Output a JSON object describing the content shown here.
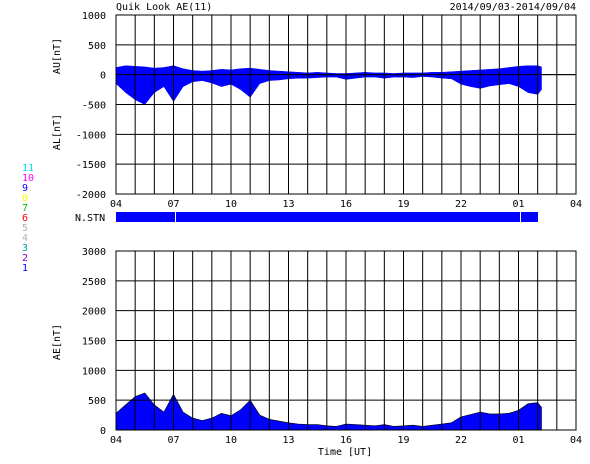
{
  "header": {
    "title": "Quik Look AE(11)",
    "date_range": "2014/09/03-2014/09/04"
  },
  "stations_legend": [
    {
      "label": "11",
      "color": "#00d8e8"
    },
    {
      "label": "10",
      "color": "#ff00ff"
    },
    {
      "label": "9",
      "color": "#0000ff"
    },
    {
      "label": "8",
      "color": "#ffff00"
    },
    {
      "label": "7",
      "color": "#00c000"
    },
    {
      "label": "6",
      "color": "#ff0000"
    },
    {
      "label": "5",
      "color": "#b0b0b0"
    },
    {
      "label": "4",
      "color": "#b0b0b0"
    },
    {
      "label": "3",
      "color": "#00a0a0"
    },
    {
      "label": "2",
      "color": "#8000c0"
    },
    {
      "label": "1",
      "color": "#0000ff"
    }
  ],
  "nstn_label": "N.STN",
  "x_tick_labels": [
    "04",
    "07",
    "10",
    "13",
    "16",
    "19",
    "22",
    "01",
    "04"
  ],
  "x_axis_label": "Time [UT]",
  "colors": {
    "fill": "#0000ff",
    "grid": "#000000"
  },
  "chart_data": [
    {
      "type": "area",
      "panel": "AU/AL",
      "ylabel_top": "AU[nT]",
      "ylabel_bottom": "AL[nT]",
      "ylim": [
        -2000,
        1000
      ],
      "y_ticks": [
        1000,
        500,
        0,
        -500,
        -1000,
        -1500,
        -2000
      ],
      "xlim_hours": [
        4,
        28
      ],
      "data_end_hour": 26.2,
      "series": [
        {
          "name": "AU",
          "x": [
            4,
            4.5,
            5,
            5.5,
            6,
            6.5,
            7,
            7.5,
            8,
            8.5,
            9,
            9.5,
            10,
            10.5,
            11,
            11.5,
            12,
            12.5,
            13,
            13.5,
            14,
            14.5,
            15,
            15.5,
            16,
            16.5,
            17,
            17.5,
            18,
            18.5,
            19,
            19.5,
            20,
            20.5,
            21,
            21.5,
            22,
            22.5,
            23,
            23.5,
            24,
            24.5,
            25,
            25.5,
            26,
            26.2
          ],
          "values": [
            120,
            150,
            140,
            130,
            110,
            120,
            150,
            100,
            70,
            60,
            70,
            90,
            80,
            100,
            110,
            90,
            70,
            60,
            50,
            40,
            30,
            40,
            30,
            20,
            20,
            30,
            40,
            30,
            30,
            20,
            30,
            30,
            30,
            40,
            40,
            50,
            60,
            70,
            80,
            90,
            100,
            120,
            140,
            150,
            150,
            130
          ]
        },
        {
          "name": "AL",
          "x": [
            4,
            4.5,
            5,
            5.5,
            6,
            6.5,
            7,
            7.5,
            8,
            8.5,
            9,
            9.5,
            10,
            10.5,
            11,
            11.5,
            12,
            12.5,
            13,
            13.5,
            14,
            14.5,
            15,
            15.5,
            16,
            16.5,
            17,
            17.5,
            18,
            18.5,
            19,
            19.5,
            20,
            20.5,
            21,
            21.5,
            22,
            22.5,
            23,
            23.5,
            24,
            24.5,
            25,
            25.5,
            26,
            26.2
          ],
          "values": [
            -150,
            -300,
            -420,
            -500,
            -300,
            -200,
            -450,
            -200,
            -120,
            -100,
            -140,
            -200,
            -160,
            -250,
            -380,
            -150,
            -100,
            -90,
            -70,
            -60,
            -60,
            -50,
            -40,
            -40,
            -80,
            -60,
            -40,
            -40,
            -60,
            -40,
            -40,
            -50,
            -30,
            -40,
            -60,
            -70,
            -160,
            -200,
            -230,
            -190,
            -170,
            -150,
            -200,
            -300,
            -330,
            -250
          ]
        }
      ]
    },
    {
      "type": "area",
      "panel": "AE",
      "ylabel": "AE[nT]",
      "ylim": [
        0,
        3000
      ],
      "y_ticks": [
        3000,
        2500,
        2000,
        1500,
        1000,
        500,
        0
      ],
      "xlim_hours": [
        4,
        28
      ],
      "data_end_hour": 26.2,
      "series": [
        {
          "name": "AE",
          "x": [
            4,
            4.5,
            5,
            5.5,
            6,
            6.5,
            7,
            7.5,
            8,
            8.5,
            9,
            9.5,
            10,
            10.5,
            11,
            11.5,
            12,
            12.5,
            13,
            13.5,
            14,
            14.5,
            15,
            15.5,
            16,
            16.5,
            17,
            17.5,
            18,
            18.5,
            19,
            19.5,
            20,
            20.5,
            21,
            21.5,
            22,
            22.5,
            23,
            23.5,
            24,
            24.5,
            25,
            25.5,
            26,
            26.2
          ],
          "values": [
            280,
            420,
            560,
            620,
            420,
            300,
            600,
            300,
            200,
            160,
            200,
            280,
            240,
            340,
            500,
            250,
            180,
            150,
            120,
            100,
            90,
            90,
            70,
            60,
            100,
            90,
            80,
            70,
            90,
            60,
            70,
            80,
            60,
            80,
            100,
            120,
            220,
            260,
            300,
            270,
            270,
            280,
            330,
            440,
            460,
            380
          ]
        }
      ]
    }
  ]
}
